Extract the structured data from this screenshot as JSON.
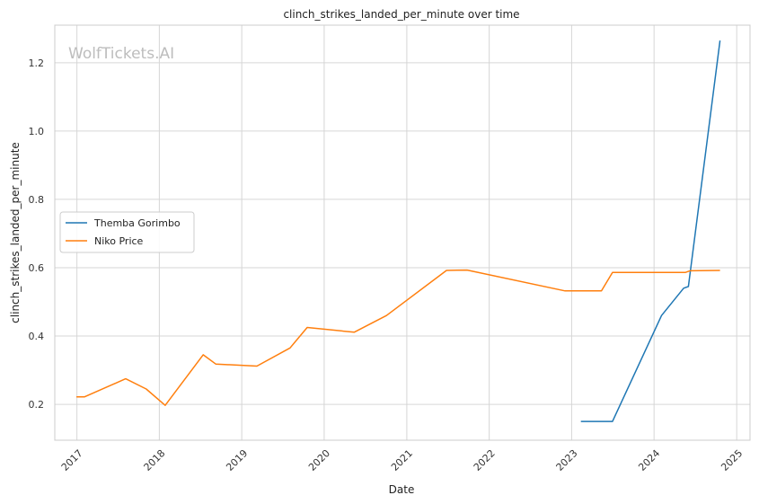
{
  "chart_data": {
    "type": "line",
    "title": "clinch_strikes_landed_per_minute over time",
    "xlabel": "Date",
    "ylabel": "clinch_strikes_landed_per_minute",
    "watermark": "WolfTickets.AI",
    "x_ticks": [
      "2017",
      "2018",
      "2019",
      "2020",
      "2021",
      "2022",
      "2023",
      "2024",
      "2025"
    ],
    "y_ticks": [
      "0.2",
      "0.4",
      "0.6",
      "0.8",
      "1.0",
      "1.2"
    ],
    "xlim": [
      "2016-09-25",
      "2025-03-01"
    ],
    "ylim": [
      0.095,
      1.31
    ],
    "grid": true,
    "legend_position": "center-left",
    "series": [
      {
        "name": "Themba Gorimbo",
        "color": "#1f77b4",
        "points": [
          [
            "2023-02-11",
            0.15
          ],
          [
            "2023-07-01",
            0.15
          ],
          [
            "2024-02-03",
            0.46
          ],
          [
            "2024-05-11",
            0.54
          ],
          [
            "2024-06-01",
            0.545
          ],
          [
            "2024-10-19",
            1.265
          ]
        ]
      },
      {
        "name": "Niko Price",
        "color": "#ff7f0e",
        "points": [
          [
            "2016-12-30",
            0.222
          ],
          [
            "2017-02-04",
            0.222
          ],
          [
            "2017-08-05",
            0.275
          ],
          [
            "2017-11-04",
            0.245
          ],
          [
            "2018-01-27",
            0.197
          ],
          [
            "2018-07-14",
            0.345
          ],
          [
            "2018-09-08",
            0.318
          ],
          [
            "2019-03-09",
            0.312
          ],
          [
            "2019-08-03",
            0.365
          ],
          [
            "2019-10-18",
            0.425
          ],
          [
            "2020-05-13",
            0.411
          ],
          [
            "2020-10-03",
            0.46
          ],
          [
            "2021-06-26",
            0.592
          ],
          [
            "2021-09-25",
            0.593
          ],
          [
            "2022-12-03",
            0.532
          ],
          [
            "2023-05-13",
            0.532
          ],
          [
            "2023-07-01",
            0.586
          ],
          [
            "2024-05-18",
            0.586
          ],
          [
            "2024-06-08",
            0.591
          ],
          [
            "2024-10-19",
            0.592
          ]
        ]
      }
    ]
  }
}
